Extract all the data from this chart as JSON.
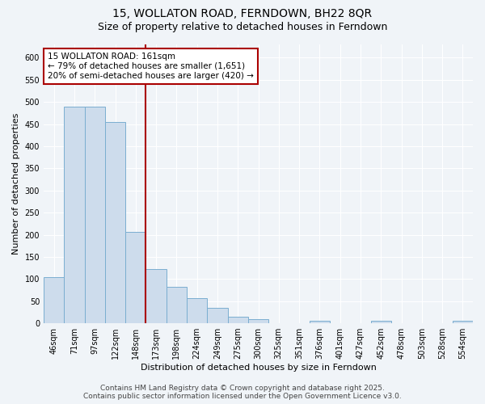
{
  "title": "15, WOLLATON ROAD, FERNDOWN, BH22 8QR",
  "subtitle": "Size of property relative to detached houses in Ferndown",
  "xlabel": "Distribution of detached houses by size in Ferndown",
  "ylabel": "Number of detached properties",
  "categories": [
    "46sqm",
    "71sqm",
    "97sqm",
    "122sqm",
    "148sqm",
    "173sqm",
    "198sqm",
    "224sqm",
    "249sqm",
    "275sqm",
    "300sqm",
    "325sqm",
    "351sqm",
    "376sqm",
    "401sqm",
    "427sqm",
    "452sqm",
    "478sqm",
    "503sqm",
    "528sqm",
    "554sqm"
  ],
  "values": [
    105,
    490,
    490,
    455,
    207,
    122,
    82,
    57,
    35,
    14,
    10,
    0,
    0,
    5,
    0,
    0,
    5,
    0,
    0,
    0,
    5
  ],
  "bar_color": "#cddcec",
  "bar_edge_color": "#7aaed0",
  "vline_x_index": 4,
  "vline_color": "#aa0000",
  "annotation_text": "15 WOLLATON ROAD: 161sqm\n← 79% of detached houses are smaller (1,651)\n20% of semi-detached houses are larger (420) →",
  "annotation_box_facecolor": "#ffffff",
  "annotation_box_edgecolor": "#aa0000",
  "ylim": [
    0,
    630
  ],
  "yticks": [
    0,
    50,
    100,
    150,
    200,
    250,
    300,
    350,
    400,
    450,
    500,
    550,
    600
  ],
  "footer_line1": "Contains HM Land Registry data © Crown copyright and database right 2025.",
  "footer_line2": "Contains public sector information licensed under the Open Government Licence v3.0.",
  "background_color": "#f0f4f8",
  "plot_bg_color": "#f0f4f8",
  "grid_color": "#ffffff",
  "title_fontsize": 10,
  "subtitle_fontsize": 9,
  "axis_label_fontsize": 8,
  "tick_fontsize": 7,
  "annotation_fontsize": 7.5,
  "footer_fontsize": 6.5
}
